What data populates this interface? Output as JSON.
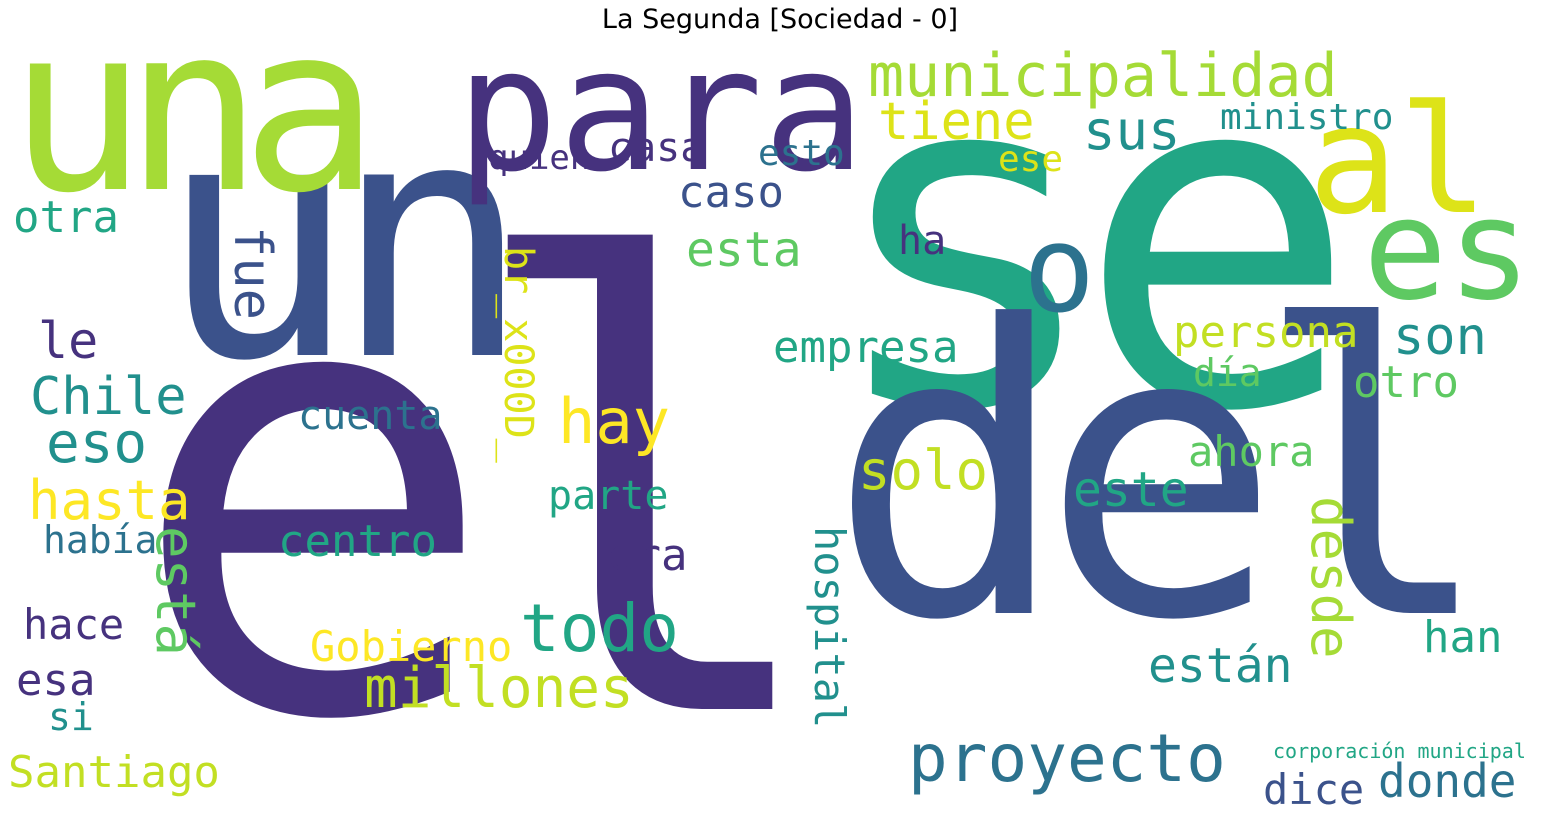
{
  "title": "La Segunda [Sociedad - 0]",
  "palette": {
    "dark_purple": "#46327e",
    "indigo": "#3b528b",
    "teal": "#21908d",
    "green": "#5ec962",
    "yellow_green": "#a5db36",
    "yellow": "#fde725"
  },
  "words": [
    "el",
    "se",
    "del",
    "un",
    "una",
    "para",
    "al",
    "es",
    "o",
    "municipalidad",
    "proyecto",
    "todo",
    "millones",
    "desde",
    "sus",
    "tiene",
    "caso",
    "casa",
    "quien",
    "esto",
    "ministro",
    "persona",
    "son",
    "otro",
    "ahora",
    "este",
    "hay",
    "fue",
    "hasta",
    "Chile",
    "eso",
    "le",
    "otra",
    "había",
    "hace",
    "esa",
    "si",
    "Santiago",
    "está",
    "era",
    "centro",
    "cuenta",
    "parte",
    "Gobierno",
    "empresa",
    "esta",
    "solo",
    "están",
    "han",
    "dice",
    "donde",
    "hospital",
    "día",
    "br_x000D_",
    "ha",
    "ese",
    "corporación municipal"
  ]
}
